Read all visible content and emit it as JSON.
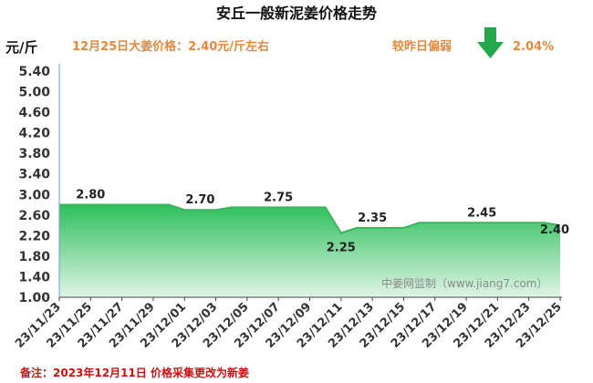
{
  "header": {
    "title": "安丘一般新泥姜价格走势",
    "unit": "元/斤",
    "price_note": "12月25日大姜价格：2.40元/斤左右",
    "change_label": "较昨日偏弱",
    "change_value": "2.04%",
    "trend": "down"
  },
  "footer": {
    "note": "备注：2023年12月11日 价格采集更改为新姜"
  },
  "watermark": "中姜网监制（www.jiang7.com）",
  "colors": {
    "title": "#111111",
    "accent_orange": "#e8883a",
    "arrow_green": "#21a84a",
    "area_top": "#2fbf5c",
    "area_bottom": "#dff5e5",
    "line": "#3bb55f",
    "axis_line": "#7a9ad6",
    "footer_red": "#cc1111"
  },
  "chart_data": {
    "type": "area",
    "ylim": [
      1.0,
      5.4
    ],
    "yticks": [
      "1.00",
      "1.40",
      "1.80",
      "2.20",
      "2.60",
      "3.00",
      "3.40",
      "3.80",
      "4.20",
      "4.60",
      "5.00",
      "5.40"
    ],
    "xticks": [
      "23/11/23",
      "23/11/25",
      "23/11/27",
      "23/11/29",
      "23/12/01",
      "23/12/03",
      "23/12/05",
      "23/12/07",
      "23/12/09",
      "23/12/11",
      "23/12/13",
      "23/12/15",
      "23/12/17",
      "23/12/19",
      "23/12/21",
      "23/12/23",
      "23/12/25"
    ],
    "x": [
      "23/11/23",
      "23/11/24",
      "23/11/25",
      "23/11/26",
      "23/11/27",
      "23/11/28",
      "23/11/29",
      "23/11/30",
      "23/12/01",
      "23/12/02",
      "23/12/03",
      "23/12/04",
      "23/12/05",
      "23/12/06",
      "23/12/07",
      "23/12/08",
      "23/12/09",
      "23/12/10",
      "23/12/11",
      "23/12/12",
      "23/12/13",
      "23/12/14",
      "23/12/15",
      "23/12/16",
      "23/12/17",
      "23/12/18",
      "23/12/19",
      "23/12/20",
      "23/12/21",
      "23/12/22",
      "23/12/23",
      "23/12/24",
      "23/12/25"
    ],
    "values": [
      2.8,
      2.8,
      2.8,
      2.8,
      2.8,
      2.8,
      2.8,
      2.8,
      2.7,
      2.7,
      2.7,
      2.75,
      2.75,
      2.75,
      2.75,
      2.75,
      2.75,
      2.75,
      2.25,
      2.35,
      2.35,
      2.35,
      2.35,
      2.45,
      2.45,
      2.45,
      2.45,
      2.45,
      2.45,
      2.45,
      2.45,
      2.45,
      2.4
    ],
    "data_labels": [
      {
        "x": "23/11/25",
        "text": "2.80"
      },
      {
        "x": "23/12/02",
        "text": "2.70"
      },
      {
        "x": "23/12/07",
        "text": "2.75"
      },
      {
        "x": "23/12/11",
        "text": "2.25"
      },
      {
        "x": "23/12/13",
        "text": "2.35"
      },
      {
        "x": "23/12/20",
        "text": "2.45"
      },
      {
        "x": "23/12/25",
        "text": "2.40"
      }
    ],
    "grid": false
  }
}
